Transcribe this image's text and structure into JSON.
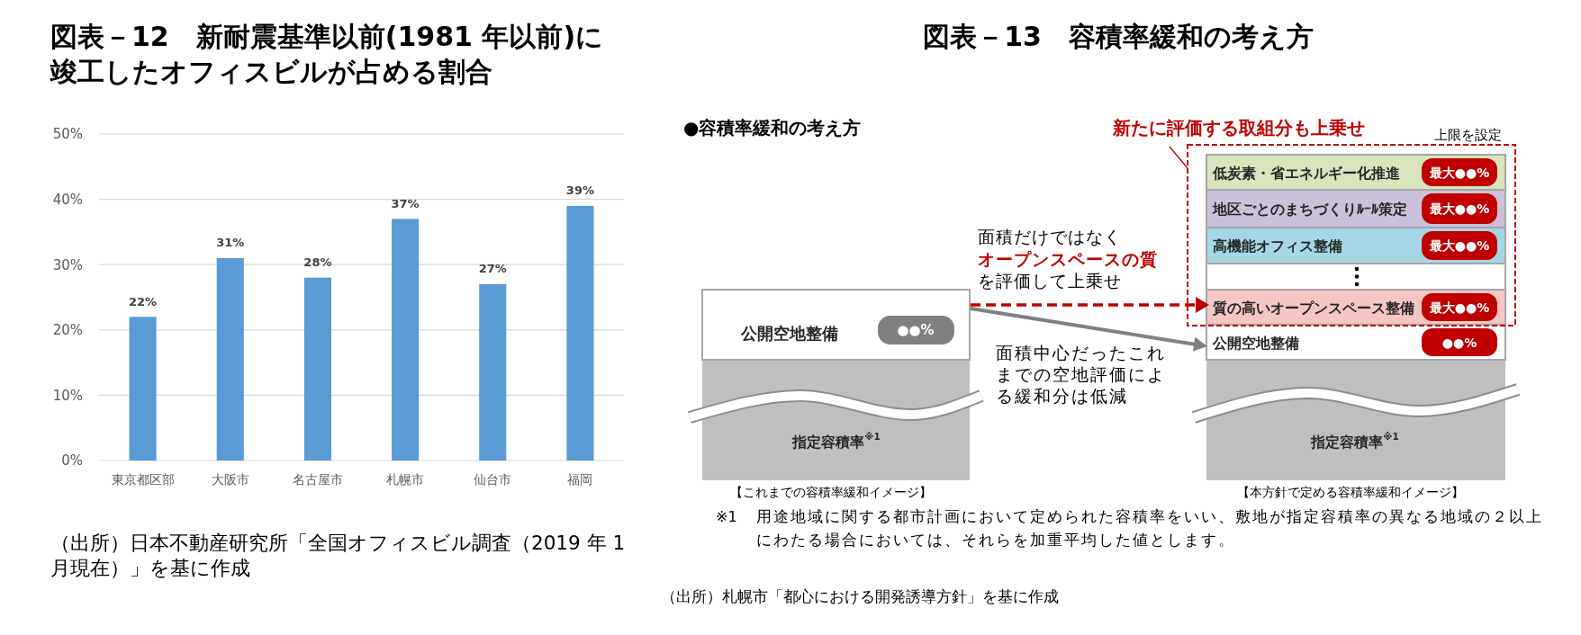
{
  "chart_data": [
    {
      "type": "bar",
      "title": "図表－12　新耐震基準以前(1981 年以前)に竣工したオフィスビルが占める割合",
      "categories": [
        "東京都区部",
        "大阪市",
        "名古屋市",
        "札幌市",
        "仙台市",
        "福岡"
      ],
      "values": [
        22,
        31,
        28,
        37,
        27,
        39
      ],
      "value_labels": [
        "22%",
        "31%",
        "28%",
        "37%",
        "27%",
        "39%"
      ],
      "color": "#5b9bd5",
      "ylim": [
        0,
        50
      ],
      "yticks": [
        {
          "value": 0,
          "label": "0%"
        },
        {
          "value": 10,
          "label": "10%"
        },
        {
          "value": 20,
          "label": "20%"
        },
        {
          "value": 30,
          "label": "30%"
        },
        {
          "value": 40,
          "label": "40%"
        },
        {
          "value": 50,
          "label": "50%"
        }
      ],
      "grid": "y",
      "annotations": [
        "（出所）日本不動産研究所「全国オフィスビル調査（2019 年 1 月現在）」を基に作成"
      ]
    },
    {
      "type": "other",
      "title": "図表－13　容積率緩和の考え方",
      "annotations": [
        "●容積率緩和の考え方",
        "新たに評価する取組分も上乗せ",
        "上限を設定",
        "面積だけではなく",
        "オープンスペースの質",
        "を評価して上乗せ",
        "公開空地整備",
        "●●%",
        "面積中心だったこれまでの空地評価による緩和分は低減",
        "低炭素・省エネルギー化推進",
        "最大●●%",
        "地区ごとのまちづくりﾙｰﾙ策定",
        "最大●●%",
        "高機能オフィス整備",
        "最大●●%",
        "質の高いオープンスペース整備",
        "最大●●%",
        "公開空地整備",
        "●●%",
        "指定容積率$^{※1}$",
        "指定容積率$^{※1}$",
        "【これまでの容積率緩和イメージ】",
        "【本方針で定める容積率緩和イメージ】",
        "※1",
        "用途地域に関する都市計画において定められた容積率をいい、敷地が指定容積率の異なる地域の２以上にわたる場合においては、それらを加重平均した値とします。",
        "（出所）札幌市「都心における開発誘導方針」を基に作成"
      ]
    }
  ]
}
